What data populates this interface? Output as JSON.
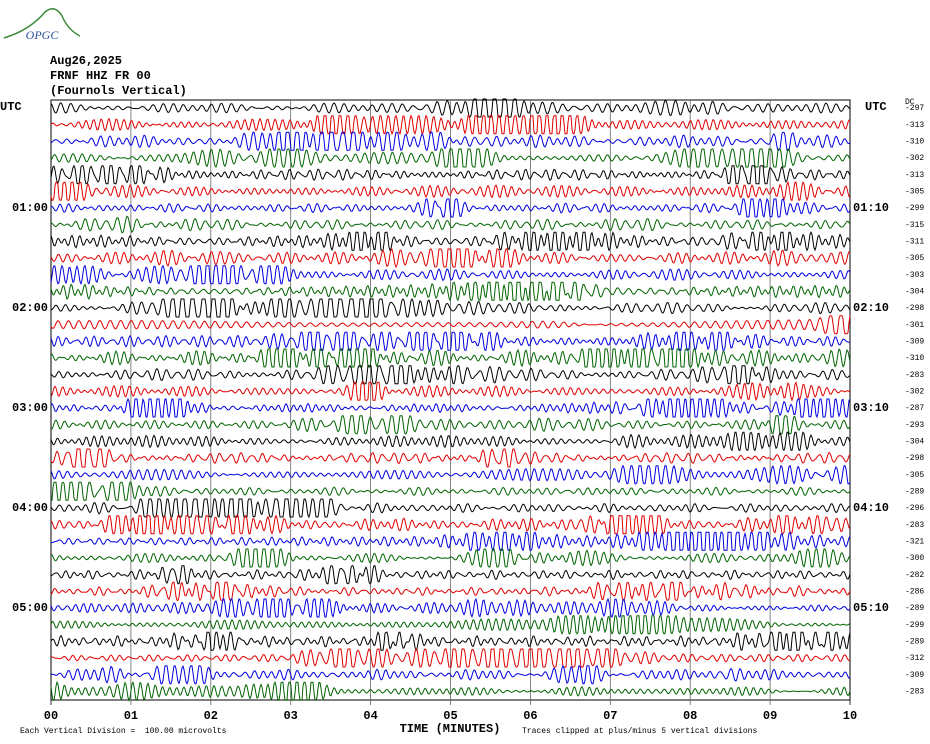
{
  "header": {
    "logo": "OPGC",
    "date": "Aug26,2025",
    "station": "FRNF HHZ FR 00",
    "component": "(Fournols Vertical)"
  },
  "axes": {
    "left_title": "UTC",
    "right_title": "UTC",
    "dc_title": "DC",
    "left_labels": [
      "01:00",
      "02:00",
      "03:00",
      "04:00",
      "05:00"
    ],
    "right_labels": [
      "01:10",
      "02:10",
      "03:10",
      "04:10",
      "05:10"
    ],
    "x_ticks": [
      "00",
      "01",
      "02",
      "03",
      "04",
      "05",
      "06",
      "07",
      "08",
      "09",
      "10"
    ],
    "x_title": "TIME (MINUTES)"
  },
  "dc_offsets": [
    "-297",
    "-313",
    "-310",
    "-302",
    "-313",
    "-305",
    "-299",
    "-315",
    "-311",
    "-305",
    "-303",
    "-304",
    "-298",
    "-301",
    "-309",
    "-310",
    "-283",
    "-302",
    "-287",
    "-293",
    "-304",
    "-298",
    "-305",
    "-289",
    "-296",
    "-283",
    "-321",
    "-300",
    "-282",
    "-286",
    "-289",
    "-299",
    "-289",
    "-312",
    "-309",
    "-283"
  ],
  "footer": {
    "scale": "Each Vertical Division =  100.00 microvolts",
    "clip": "Traces clipped at plus/minus 5 vertical divisions"
  }
}
